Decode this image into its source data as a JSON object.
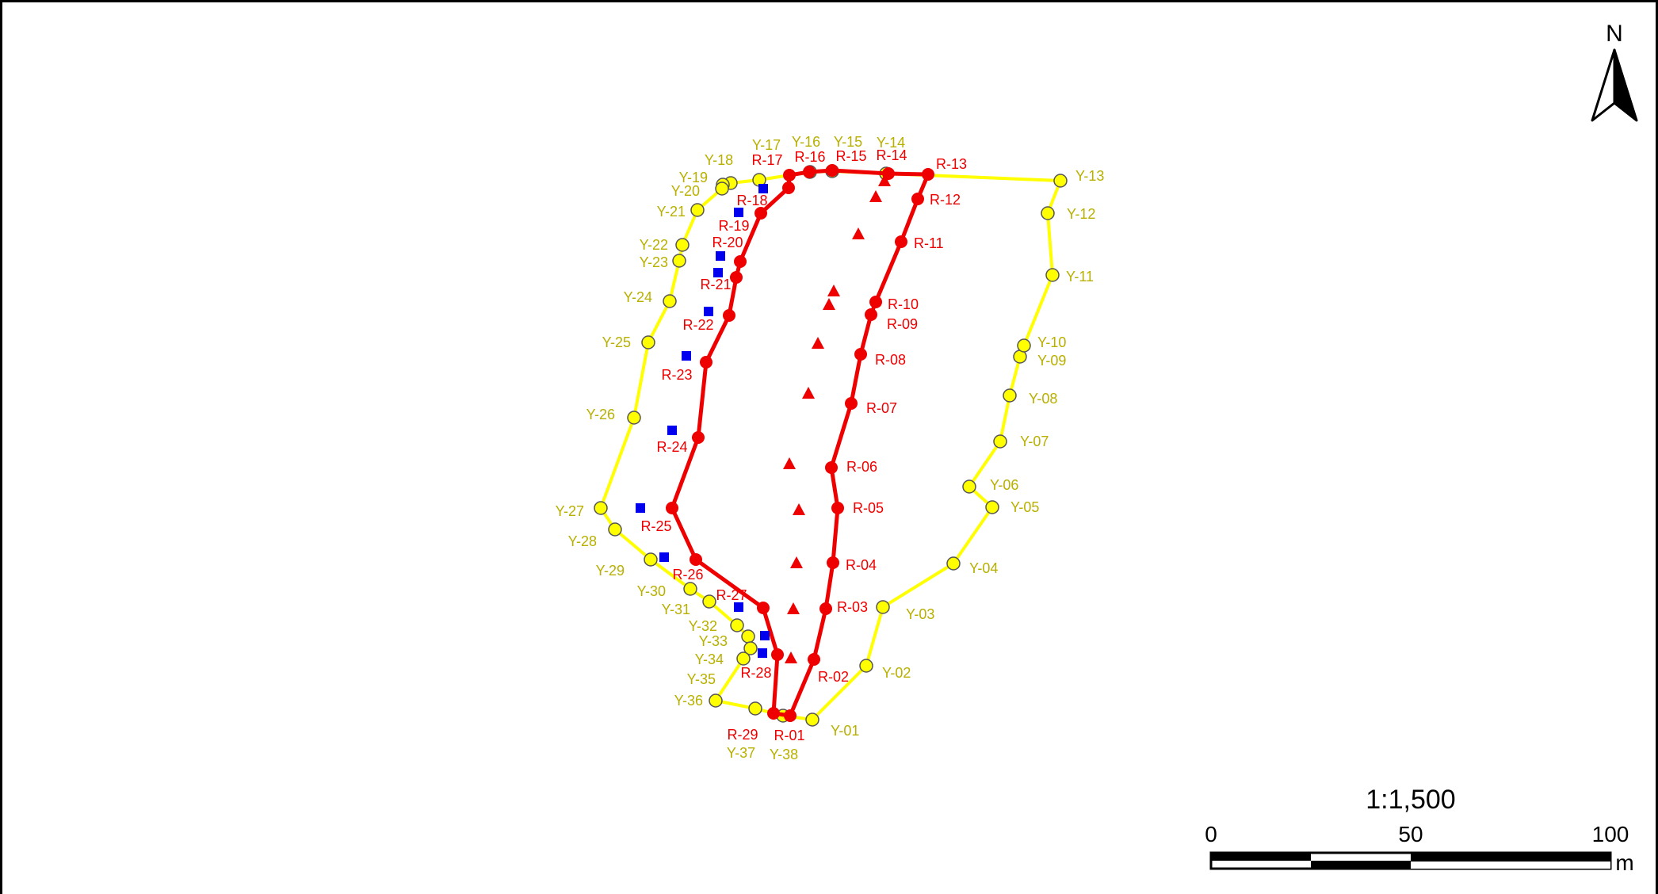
{
  "map": {
    "north_label": "N",
    "scale_ratio": "1:1,500",
    "scale_ticks": [
      "0",
      "50",
      "100"
    ],
    "scale_unit": "m",
    "colors": {
      "yellow_line": "#ffff00",
      "yellow_fill": "#ffff00",
      "yellow_label": "#b8b000",
      "red": "#ee0000",
      "blue": "#0000ee"
    }
  },
  "yellow_points": [
    {
      "id": "Y-01",
      "label": "Y-01"
    },
    {
      "id": "Y-02",
      "label": "Y-02"
    },
    {
      "id": "Y-03",
      "label": "Y-03"
    },
    {
      "id": "Y-04",
      "label": "Y-04"
    },
    {
      "id": "Y-05",
      "label": "Y-05"
    },
    {
      "id": "Y-06",
      "label": "Y-06"
    },
    {
      "id": "Y-07",
      "label": "Y-07"
    },
    {
      "id": "Y-08",
      "label": "Y-08"
    },
    {
      "id": "Y-09",
      "label": "Y-09"
    },
    {
      "id": "Y-10",
      "label": "Y-10"
    },
    {
      "id": "Y-11",
      "label": "Y-11"
    },
    {
      "id": "Y-12",
      "label": "Y-12"
    },
    {
      "id": "Y-13",
      "label": "Y-13"
    },
    {
      "id": "Y-14",
      "label": "Y-14"
    },
    {
      "id": "Y-15",
      "label": "Y-15"
    },
    {
      "id": "Y-16",
      "label": "Y-16"
    },
    {
      "id": "Y-17",
      "label": "Y-17"
    },
    {
      "id": "Y-18",
      "label": "Y-18"
    },
    {
      "id": "Y-19",
      "label": "Y-19"
    },
    {
      "id": "Y-20",
      "label": "Y-20"
    },
    {
      "id": "Y-21",
      "label": "Y-21"
    },
    {
      "id": "Y-22",
      "label": "Y-22"
    },
    {
      "id": "Y-23",
      "label": "Y-23"
    },
    {
      "id": "Y-24",
      "label": "Y-24"
    },
    {
      "id": "Y-25",
      "label": "Y-25"
    },
    {
      "id": "Y-26",
      "label": "Y-26"
    },
    {
      "id": "Y-27",
      "label": "Y-27"
    },
    {
      "id": "Y-28",
      "label": "Y-28"
    },
    {
      "id": "Y-29",
      "label": "Y-29"
    },
    {
      "id": "Y-30",
      "label": "Y-30"
    },
    {
      "id": "Y-31",
      "label": "Y-31"
    },
    {
      "id": "Y-32",
      "label": "Y-32"
    },
    {
      "id": "Y-33",
      "label": "Y-33"
    },
    {
      "id": "Y-34",
      "label": "Y-34"
    },
    {
      "id": "Y-35",
      "label": "Y-35"
    },
    {
      "id": "Y-36",
      "label": "Y-36"
    },
    {
      "id": "Y-37",
      "label": "Y-37"
    },
    {
      "id": "Y-38",
      "label": "Y-38"
    }
  ],
  "red_points": [
    {
      "id": "R-01",
      "label": "R-01"
    },
    {
      "id": "R-02",
      "label": "R-02"
    },
    {
      "id": "R-03",
      "label": "R-03"
    },
    {
      "id": "R-04",
      "label": "R-04"
    },
    {
      "id": "R-05",
      "label": "R-05"
    },
    {
      "id": "R-06",
      "label": "R-06"
    },
    {
      "id": "R-07",
      "label": "R-07"
    },
    {
      "id": "R-08",
      "label": "R-08"
    },
    {
      "id": "R-09",
      "label": "R-09"
    },
    {
      "id": "R-10",
      "label": "R-10"
    },
    {
      "id": "R-11",
      "label": "R-11"
    },
    {
      "id": "R-12",
      "label": "R-12"
    },
    {
      "id": "R-13",
      "label": "R-13"
    },
    {
      "id": "R-14",
      "label": "R-14"
    },
    {
      "id": "R-15",
      "label": "R-15"
    },
    {
      "id": "R-16",
      "label": "R-16"
    },
    {
      "id": "R-17",
      "label": "R-17"
    },
    {
      "id": "R-18",
      "label": "R-18"
    },
    {
      "id": "R-19",
      "label": "R-19"
    },
    {
      "id": "R-20",
      "label": "R-20"
    },
    {
      "id": "R-21",
      "label": "R-21"
    },
    {
      "id": "R-22",
      "label": "R-22"
    },
    {
      "id": "R-23",
      "label": "R-23"
    },
    {
      "id": "R-24",
      "label": "R-24"
    },
    {
      "id": "R-25",
      "label": "R-25"
    },
    {
      "id": "R-26",
      "label": "R-26"
    },
    {
      "id": "R-27",
      "label": "R-27"
    },
    {
      "id": "R-28",
      "label": "R-28"
    },
    {
      "id": "R-29",
      "label": "R-29"
    }
  ],
  "triangle_marker_count": 12,
  "square_marker_count": 12
}
